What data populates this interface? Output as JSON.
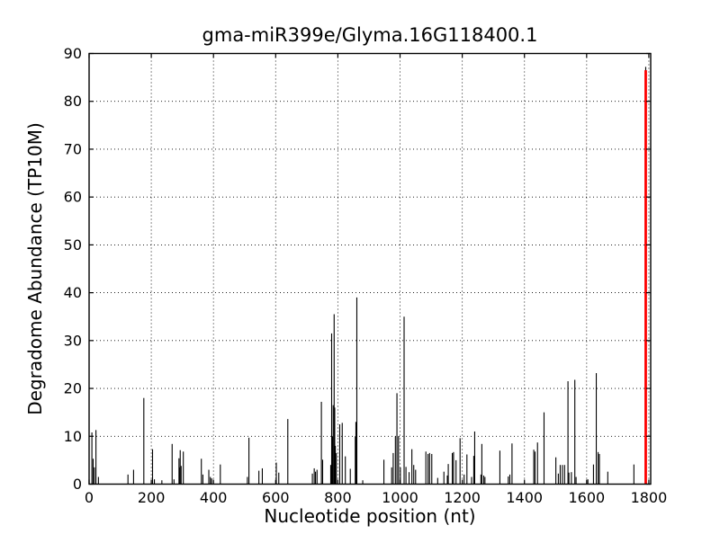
{
  "figure": {
    "background": "#ffffff",
    "spike_color": "#000000",
    "highlight_color": "#fd0000"
  },
  "chart_data": {
    "type": "bar",
    "subtype": "stem-spikes",
    "title": "gma-miR399e/Glyma.16G118400.1",
    "xlabel": "Nucleotide position (nt)",
    "ylabel": "Degradome Abundance (TP10M)",
    "xlim": [
      0,
      1806
    ],
    "ylim": [
      0,
      90
    ],
    "xticks": [
      0,
      200,
      400,
      600,
      800,
      1000,
      1200,
      1400,
      1600,
      1800
    ],
    "yticks": [
      0,
      10,
      20,
      30,
      40,
      50,
      60,
      70,
      80,
      90
    ],
    "grid": true,
    "grid_style": "dotted",
    "legend": "none",
    "series": [
      {
        "id": "degradome-spikes",
        "color": "#000000",
        "line_width": 1.1,
        "points": [
          [
            9,
            10.8
          ],
          [
            13,
            5.3
          ],
          [
            17,
            3.5
          ],
          [
            22,
            11.3
          ],
          [
            30,
            1.5
          ],
          [
            125,
            2.0
          ],
          [
            143,
            3.0
          ],
          [
            176,
            18.0
          ],
          [
            204,
            7.3
          ],
          [
            210,
            1.0
          ],
          [
            234,
            0.8
          ],
          [
            267,
            8.4
          ],
          [
            273,
            1.0
          ],
          [
            289,
            5.4
          ],
          [
            291,
            3.5
          ],
          [
            293,
            7.1
          ],
          [
            296,
            3.8
          ],
          [
            303,
            6.8
          ],
          [
            361,
            5.3
          ],
          [
            366,
            2.0
          ],
          [
            385,
            3.0
          ],
          [
            390,
            1.5
          ],
          [
            394,
            1.2
          ],
          [
            422,
            4.1
          ],
          [
            509,
            1.5
          ],
          [
            514,
            9.7
          ],
          [
            546,
            2.8
          ],
          [
            557,
            3.3
          ],
          [
            602,
            4.5
          ],
          [
            610,
            2.4
          ],
          [
            639,
            13.6
          ],
          [
            718,
            2.2
          ],
          [
            724,
            3.3
          ],
          [
            728,
            2.6
          ],
          [
            733,
            3.0
          ],
          [
            747,
            17.2
          ],
          [
            751,
            5.1
          ],
          [
            777,
            4.0
          ],
          [
            780,
            31.5
          ],
          [
            783,
            10.0
          ],
          [
            785,
            16.5
          ],
          [
            788,
            35.5
          ],
          [
            790,
            16.0
          ],
          [
            792,
            8.0
          ],
          [
            795,
            6.5
          ],
          [
            806,
            12.5
          ],
          [
            814,
            12.8
          ],
          [
            824,
            5.8
          ],
          [
            840,
            3.2
          ],
          [
            856,
            10.0
          ],
          [
            858,
            13.0
          ],
          [
            861,
            39.0
          ],
          [
            880,
            0.8
          ],
          [
            948,
            5.1
          ],
          [
            973,
            3.5
          ],
          [
            978,
            6.5
          ],
          [
            985,
            10.0
          ],
          [
            990,
            19.0
          ],
          [
            995,
            10.0
          ],
          [
            1001,
            3.5
          ],
          [
            1013,
            35.0
          ],
          [
            1019,
            3.6
          ],
          [
            1029,
            2.5
          ],
          [
            1038,
            7.3
          ],
          [
            1044,
            4.0
          ],
          [
            1050,
            3.0
          ],
          [
            1083,
            6.8
          ],
          [
            1090,
            6.3
          ],
          [
            1095,
            6.5
          ],
          [
            1102,
            6.3
          ],
          [
            1121,
            1.3
          ],
          [
            1141,
            2.6
          ],
          [
            1152,
            1.8
          ],
          [
            1155,
            4.2
          ],
          [
            1168,
            6.5
          ],
          [
            1172,
            6.7
          ],
          [
            1180,
            5.0
          ],
          [
            1193,
            9.6
          ],
          [
            1206,
            2.0
          ],
          [
            1215,
            6.2
          ],
          [
            1230,
            1.5
          ],
          [
            1237,
            5.9
          ],
          [
            1240,
            11.0
          ],
          [
            1260,
            2.0
          ],
          [
            1263,
            8.4
          ],
          [
            1269,
            1.8
          ],
          [
            1273,
            1.5
          ],
          [
            1321,
            7.0
          ],
          [
            1348,
            1.6
          ],
          [
            1353,
            2.0
          ],
          [
            1360,
            8.5
          ],
          [
            1430,
            7.2
          ],
          [
            1434,
            6.8
          ],
          [
            1442,
            8.7
          ],
          [
            1463,
            15.0
          ],
          [
            1501,
            5.6
          ],
          [
            1509,
            2.2
          ],
          [
            1515,
            4.0
          ],
          [
            1522,
            4.0
          ],
          [
            1529,
            4.0
          ],
          [
            1540,
            21.5
          ],
          [
            1543,
            2.4
          ],
          [
            1551,
            2.5
          ],
          [
            1562,
            21.8
          ],
          [
            1566,
            1.5
          ],
          [
            1604,
            1.0
          ],
          [
            1622,
            4.1
          ],
          [
            1631,
            23.2
          ],
          [
            1637,
            6.7
          ],
          [
            1641,
            6.3
          ],
          [
            1668,
            2.6
          ],
          [
            1752,
            4.1
          ],
          [
            1790,
            87.2
          ]
        ]
      },
      {
        "id": "highlighted-cleavage-spike",
        "color": "#fd0000",
        "line_width": 2.8,
        "points": [
          [
            1790,
            86.5
          ]
        ]
      }
    ]
  }
}
